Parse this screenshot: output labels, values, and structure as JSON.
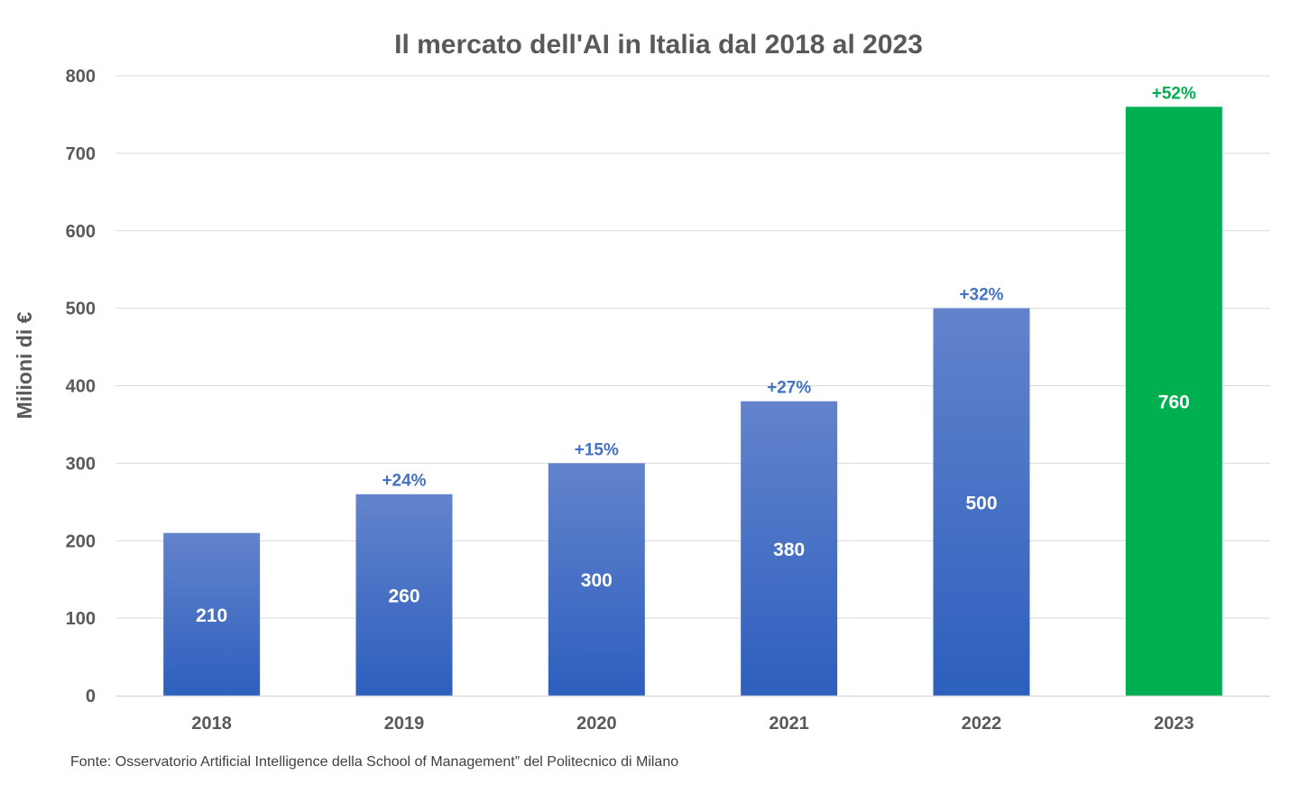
{
  "chart_data": {
    "type": "bar",
    "title": "Il mercato dell'AI in Italia dal 2018 al 2023",
    "xlabel": "",
    "ylabel": "Milioni di €",
    "categories": [
      "2018",
      "2019",
      "2020",
      "2021",
      "2022",
      "2023"
    ],
    "values": [
      210,
      260,
      300,
      380,
      500,
      760
    ],
    "value_labels": [
      "210",
      "260",
      "300",
      "380",
      "500",
      "760"
    ],
    "growth_labels": [
      "",
      "+24%",
      "+15%",
      "+27%",
      "+32%",
      "+52%"
    ],
    "ylim": [
      0,
      800
    ],
    "yticks": [
      0,
      100,
      200,
      300,
      400,
      500,
      600,
      700,
      800
    ],
    "ytick_labels": [
      "0",
      "100",
      "200",
      "300",
      "400",
      "500",
      "600",
      "700",
      "800"
    ],
    "grid": true,
    "legend": "none",
    "colors": {
      "bar_default_top": "#6383CC",
      "bar_default_bottom": "#2D5FBE",
      "bar_highlight": "#00B050",
      "growth_default": "#4472C4",
      "growth_highlight": "#00B050",
      "gridline": "#D9D9D9",
      "text": "#595959"
    },
    "highlight_index": 5
  },
  "source": "Fonte: Osservatorio Artificial Intelligence della School of Management” del Politecnico di Milano"
}
